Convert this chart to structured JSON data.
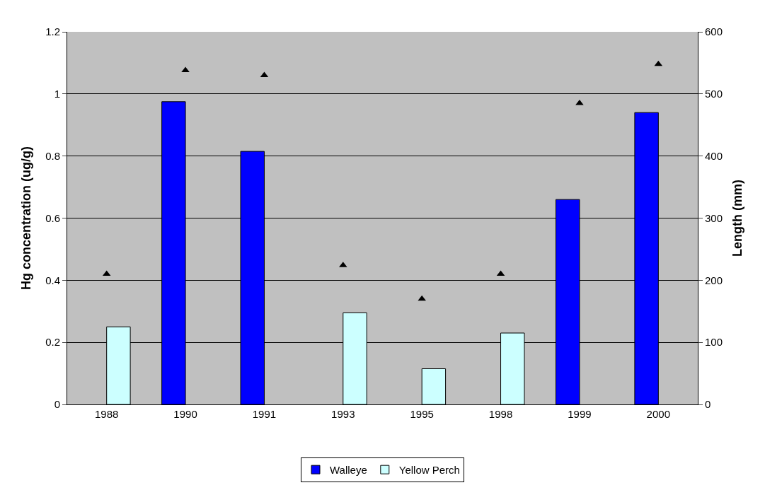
{
  "chart_data": {
    "type": "bar",
    "categories": [
      "1988",
      "1990",
      "1991",
      "1993",
      "1995",
      "1998",
      "1999",
      "2000"
    ],
    "ylabel": "Hg concentration (ug/g)",
    "y2label": "Length (mm)",
    "series": [
      {
        "name": "Walleye",
        "color": "#0000ff",
        "values": [
          null,
          0.975,
          0.815,
          null,
          null,
          null,
          0.66,
          0.94
        ]
      },
      {
        "name": "Yellow Perch",
        "color": "#ccffff",
        "values": [
          0.25,
          null,
          null,
          0.295,
          0.115,
          0.23,
          null,
          null
        ]
      },
      {
        "type": "scatter",
        "axis": "y2",
        "color": "#000000",
        "marker": "triangle",
        "values": [
          210,
          538,
          530,
          224,
          170,
          210,
          485,
          548
        ]
      }
    ],
    "ylim": [
      0,
      1.2
    ],
    "yticks": [
      0,
      0.2,
      0.4,
      0.6,
      0.8,
      1,
      1.2
    ],
    "y2lim": [
      0,
      600
    ],
    "y2ticks": [
      0,
      100,
      200,
      300,
      400,
      500,
      600
    ],
    "grid": "y",
    "legend": "bottom"
  }
}
